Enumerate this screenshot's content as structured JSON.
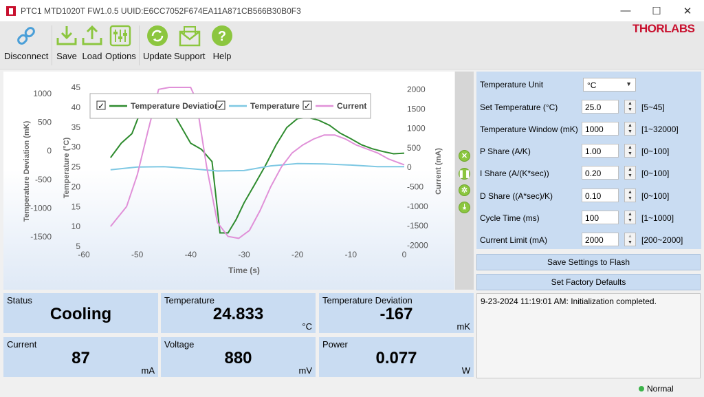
{
  "window": {
    "title": "PTC1 MTD1020T FW1.0.5 UUID:E6CC7052F674EA11A871CB566B30B0F3",
    "minimize": "—",
    "maximize": "☐",
    "close": "✕"
  },
  "toolbar": {
    "disconnect": "Disconnect",
    "save": "Save",
    "load": "Load",
    "options": "Options",
    "update": "Update",
    "support": "Support",
    "help": "Help",
    "logo": "THORLABS",
    "accent_green": "#8cc63f"
  },
  "chart_data": {
    "type": "line",
    "xlabel": "Time (s)",
    "ylabel_left_outer": "Temperature Deviation (mK)",
    "ylabel_left_inner": "Temperature (°C)",
    "ylabel_right": "Current (mA)",
    "x_range": [
      -60,
      0
    ],
    "x_ticks": [
      "-60",
      "-50",
      "-40",
      "-30",
      "-20",
      "-10",
      "0"
    ],
    "deviation_ticks": [
      "1000",
      "500",
      "0",
      "-500",
      "-1000",
      "-1500"
    ],
    "temperature_ticks": [
      "45",
      "40",
      "35",
      "30",
      "25",
      "20",
      "15",
      "10",
      "5"
    ],
    "current_ticks": [
      "2000",
      "1500",
      "1000",
      "500",
      "0",
      "-500",
      "-1000",
      "-1500",
      "-2000"
    ],
    "grid": false,
    "legend_position": "top",
    "legend": [
      "Temperature Deviation",
      "Temperature",
      "Current"
    ],
    "series": [
      {
        "name": "Temperature Deviation",
        "axis": "deviation_mK",
        "ylim": [
          -1700,
          1150
        ],
        "color": "#2e8b2e",
        "x": [
          -55,
          -53,
          -51,
          -49,
          -47,
          -45.5,
          -44,
          -42,
          -40,
          -38,
          -36,
          -34.5,
          -33,
          -31.5,
          -30,
          -28,
          -26,
          -24,
          -22,
          -20,
          -18,
          -16,
          -14,
          -12,
          -10,
          -8,
          -6,
          -4,
          -2,
          0
        ],
        "y": [
          -110,
          150,
          320,
          810,
          870,
          880,
          810,
          480,
          150,
          40,
          -180,
          -1460,
          -1460,
          -1220,
          -920,
          -590,
          -250,
          120,
          430,
          590,
          610,
          560,
          470,
          330,
          230,
          120,
          50,
          0,
          -40,
          -30
        ]
      },
      {
        "name": "Temperature",
        "axis": "temperature_C",
        "ylim": [
          4.5,
          45
        ],
        "color": "#7ec8e3",
        "x": [
          -55,
          -50,
          -45,
          -40,
          -35,
          -30,
          -25,
          -20,
          -15,
          -10,
          -5,
          0
        ],
        "y": [
          24,
          24.7,
          24.8,
          24.3,
          23.7,
          23.8,
          25.0,
          25.6,
          25.5,
          25.2,
          24.8,
          24.8
        ]
      },
      {
        "name": "Current",
        "axis": "current_mA",
        "ylim": [
          -2000,
          2000
        ],
        "color": "#e090d8",
        "x": [
          -55,
          -52,
          -50,
          -48,
          -46,
          -44,
          -42,
          -40,
          -39,
          -37,
          -35,
          -33,
          -31,
          -29,
          -27,
          -25,
          -23,
          -21,
          -19,
          -17,
          -15,
          -13,
          -11,
          -9,
          -7,
          -5,
          -3,
          -1,
          0
        ],
        "y": [
          -1500,
          -1000,
          -200,
          900,
          1950,
          2000,
          2000,
          2000,
          1700,
          0,
          -1400,
          -1750,
          -1800,
          -1600,
          -1100,
          -500,
          0,
          350,
          550,
          700,
          800,
          800,
          700,
          550,
          450,
          350,
          200,
          100,
          50
        ]
      }
    ]
  },
  "settings": {
    "unit_label": "Temperature Unit",
    "unit_value": "°C",
    "rows": [
      {
        "label": "Set Temperature (°C)",
        "value": "25.0",
        "range": "[5~45]"
      },
      {
        "label": "Temperature Window (mK)",
        "value": "1000",
        "range": "[1~32000]"
      },
      {
        "label": "P Share (A/K)",
        "value": "1.00",
        "range": "[0~100]"
      },
      {
        "label": "I Share (A/(K*sec))",
        "value": "0.20",
        "range": "[0~100]"
      },
      {
        "label": "D Share ((A*sec)/K)",
        "value": "0.10",
        "range": "[0~100]"
      },
      {
        "label": "Cycle Time (ms)",
        "value": "100",
        "range": "[1~1000]"
      },
      {
        "label": "Current Limit (mA)",
        "value": "2000",
        "range": "[200~2000]"
      }
    ],
    "save_flash": "Save Settings to Flash",
    "factory_defaults": "Set Factory Defaults"
  },
  "tiles": {
    "status": {
      "label": "Status",
      "value": "Cooling",
      "unit": ""
    },
    "temperature": {
      "label": "Temperature",
      "value": "24.833",
      "unit": "°C"
    },
    "deviation": {
      "label": "Temperature Deviation",
      "value": "-167",
      "unit": "mK"
    },
    "current": {
      "label": "Current",
      "value": "87",
      "unit": "mA"
    },
    "voltage": {
      "label": "Voltage",
      "value": "880",
      "unit": "mV"
    },
    "power": {
      "label": "Power",
      "value": "0.077",
      "unit": "W"
    }
  },
  "log": {
    "entries": [
      "9-23-2024 11:19:01 AM: Initialization completed."
    ]
  },
  "statusbar": {
    "state": "Normal"
  }
}
